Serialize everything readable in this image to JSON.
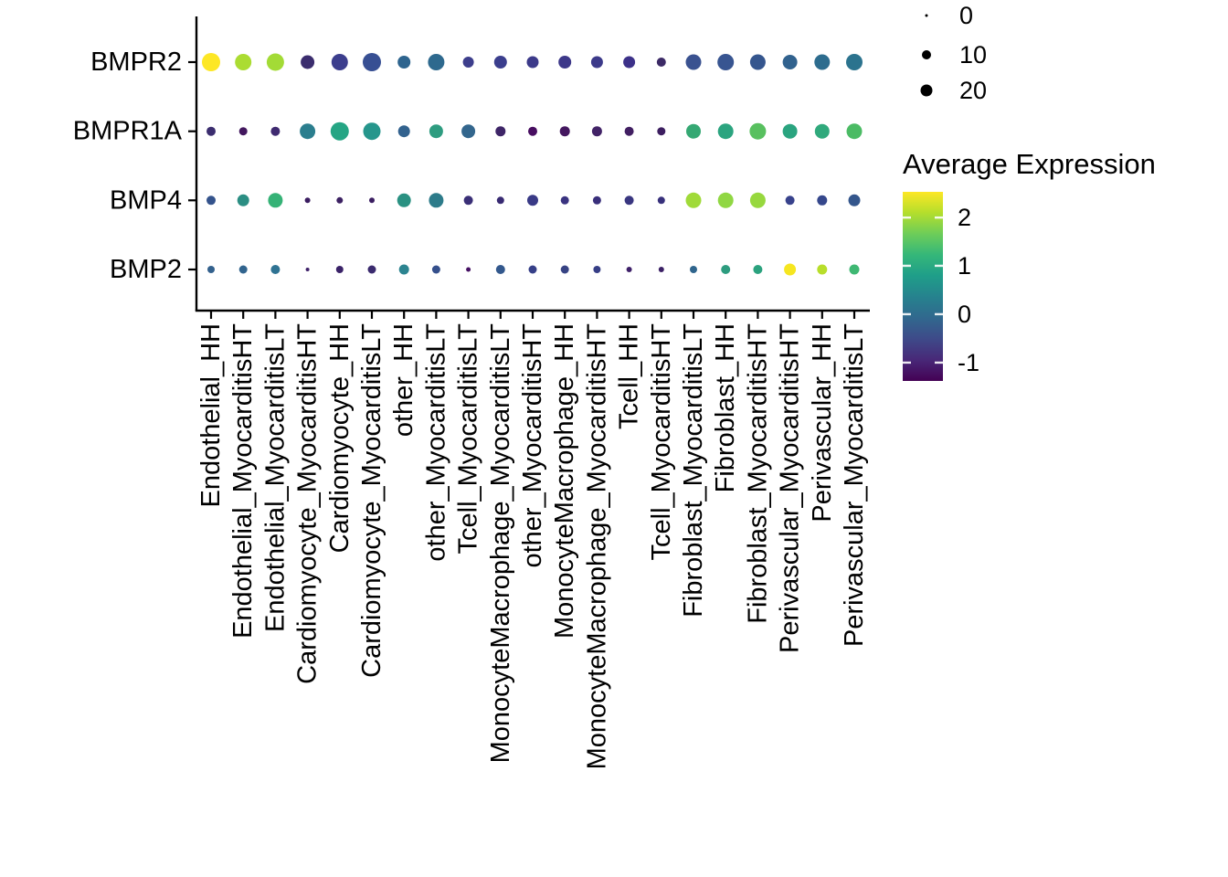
{
  "chart_data": {
    "type": "dotplot",
    "description": "Gene expression dot plot (size = percent of cells expressing, color = average expression)",
    "genes": [
      "BMPR2",
      "BMPR1A",
      "BMP4",
      "BMP2"
    ],
    "categories": [
      "Endothelial_HH",
      "Endothelial_MyocarditisHT",
      "Endothelial_MyocarditisLT",
      "Cardiomyocyte_MyocarditisHT",
      "Cardiomyocyte_HH",
      "Cardiomyocyte_MyocarditisLT",
      "other_HH",
      "other_MyocarditisLT",
      "Tcell_MyocarditisLT",
      "MonocyteMacrophage_MyocarditisLT",
      "other_MyocarditisHT",
      "MonocyteMacrophage_HH",
      "MonocyteMacrophage_MyocarditisHT",
      "Tcell_HH",
      "Tcell_MyocarditisHT",
      "Fibroblast_MyocarditisLT",
      "Fibroblast_HH",
      "Fibroblast_MyocarditisHT",
      "Perivascular_MyocarditisHT",
      "Perivascular_HH",
      "Perivascular_MyocarditisLT"
    ],
    "series": [
      {
        "gene": "BMPR2",
        "dots": [
          [
            20,
            "#FDE725"
          ],
          [
            18,
            "#ABDC32"
          ],
          [
            19,
            "#A3DB36"
          ],
          [
            15,
            "#3B2D6E"
          ],
          [
            18,
            "#3C3E8D"
          ],
          [
            20,
            "#374F93"
          ],
          [
            14,
            "#2E648E"
          ],
          [
            18,
            "#2E698E"
          ],
          [
            12,
            "#3D3E8C"
          ],
          [
            14,
            "#3B3E8D"
          ],
          [
            13,
            "#3C3A8A"
          ],
          [
            14,
            "#3D3889"
          ],
          [
            13,
            "#3C3A8A"
          ],
          [
            13,
            "#3C3189"
          ],
          [
            10,
            "#3C2A66"
          ],
          [
            17,
            "#3A5290"
          ],
          [
            18,
            "#385591"
          ],
          [
            17,
            "#35568E"
          ],
          [
            16,
            "#31628E"
          ],
          [
            17,
            "#2D6C8E"
          ],
          [
            18,
            "#2B738E"
          ]
        ]
      },
      {
        "gene": "BMPR1A",
        "dots": [
          [
            10,
            "#3B2D6F"
          ],
          [
            9,
            "#42175E"
          ],
          [
            10,
            "#3F2A70"
          ],
          [
            17,
            "#2B7E8E"
          ],
          [
            20,
            "#25A584"
          ],
          [
            19,
            "#26968C"
          ],
          [
            13,
            "#32628E"
          ],
          [
            15,
            "#2E9C80"
          ],
          [
            15,
            "#33668D"
          ],
          [
            11,
            "#3E2567"
          ],
          [
            10,
            "#470D60"
          ],
          [
            11,
            "#44175F"
          ],
          [
            11,
            "#422367"
          ],
          [
            10,
            "#411F62"
          ],
          [
            9,
            "#3C1E60"
          ],
          [
            16,
            "#35A873"
          ],
          [
            17,
            "#2BA47F"
          ],
          [
            18,
            "#58C05F"
          ],
          [
            16,
            "#2AA47F"
          ],
          [
            16,
            "#30A97C"
          ],
          [
            17,
            "#4BBB64"
          ]
        ]
      },
      {
        "gene": "BMP4",
        "dots": [
          [
            10,
            "#34538C"
          ],
          [
            13,
            "#2B8E83"
          ],
          [
            16,
            "#35B276"
          ],
          [
            6,
            "#3A1C60"
          ],
          [
            7,
            "#3C2162"
          ],
          [
            6,
            "#3A1D60"
          ],
          [
            15,
            "#2A9182"
          ],
          [
            16,
            "#2D7B8A"
          ],
          [
            10,
            "#3A2F77"
          ],
          [
            8,
            "#382A72"
          ],
          [
            12,
            "#393A86"
          ],
          [
            9,
            "#3A3380"
          ],
          [
            9,
            "#392F7B"
          ],
          [
            10,
            "#393680"
          ],
          [
            8,
            "#37307B"
          ],
          [
            17,
            "#A0DA39"
          ],
          [
            17,
            "#90D743"
          ],
          [
            17,
            "#97D83E"
          ],
          [
            10,
            "#38428C"
          ],
          [
            11,
            "#35478C"
          ],
          [
            13,
            "#34568C"
          ]
        ]
      },
      {
        "gene": "BMP2",
        "dots": [
          [
            8,
            "#33618D"
          ],
          [
            9,
            "#31648E"
          ],
          [
            10,
            "#2F7393"
          ],
          [
            4,
            "#3F2169"
          ],
          [
            8,
            "#3A2268"
          ],
          [
            9,
            "#3A2A6E"
          ],
          [
            11,
            "#2C8490"
          ],
          [
            9,
            "#35508C"
          ],
          [
            5,
            "#451063"
          ],
          [
            10,
            "#33588D"
          ],
          [
            9,
            "#363F88"
          ],
          [
            9,
            "#374384"
          ],
          [
            8,
            "#363E86"
          ],
          [
            6,
            "#3E2069"
          ],
          [
            6,
            "#3B2065"
          ],
          [
            8,
            "#2F658D"
          ],
          [
            10,
            "#2D9C7F"
          ],
          [
            10,
            "#2BA27E"
          ],
          [
            13,
            "#F6E620"
          ],
          [
            11,
            "#B8DE2B"
          ],
          [
            11,
            "#3FB873"
          ]
        ]
      }
    ],
    "size_legend": {
      "entries": [
        {
          "label": "0",
          "radius": 1.5
        },
        {
          "label": "10",
          "radius": 5
        },
        {
          "label": "20",
          "radius": 6.5
        }
      ]
    },
    "color_legend": {
      "title": "Average Expression",
      "ticks": [
        "2",
        "1",
        "0",
        "-1"
      ],
      "tick_fractions_from_top": [
        0.136,
        0.391,
        0.647,
        0.903
      ],
      "gradient_bottom_to_top": [
        "#440154",
        "#482878",
        "#3E4A89",
        "#31688E",
        "#26828E",
        "#1F9E89",
        "#35B779",
        "#6DCD59",
        "#B4DE2C",
        "#FDE725"
      ]
    },
    "axes": {
      "grid": false,
      "x_label_angle": 90,
      "background": "#ffffff"
    }
  }
}
